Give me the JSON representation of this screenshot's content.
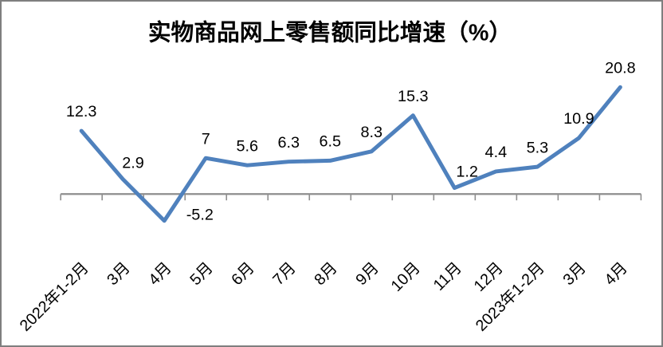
{
  "chart_data": {
    "type": "line",
    "title": "实物商品网上零售额同比增速（%）",
    "categories": [
      "2022年1-2月",
      "3月",
      "4月",
      "5月",
      "6月",
      "7月",
      "8月",
      "9月",
      "10月",
      "11月",
      "12月",
      "2023年1-2月",
      "3月",
      "4月"
    ],
    "values": [
      12.3,
      2.9,
      -5.2,
      7,
      5.6,
      6.3,
      6.5,
      8.3,
      15.3,
      1.2,
      4.4,
      5.3,
      10.9,
      20.8
    ],
    "data_labels": [
      "12.3",
      "2.9",
      "-5.2",
      "7",
      "5.6",
      "6.3",
      "6.5",
      "8.3",
      "15.3",
      "1.2",
      "4.4",
      "5.3",
      "10.9",
      "20.8"
    ],
    "xlabel": "",
    "ylabel": "",
    "x_tick_label_rotation_deg": 45,
    "y_axis_labels_visible": false,
    "gridlines": false,
    "legend_position": "none",
    "ylim_implied": [
      -10,
      25
    ],
    "colors": {
      "line": "#4f81bd",
      "axis": "#8e8e8e",
      "text": "#000000",
      "background": "#ffffff",
      "frame_border": "#7f7f7f"
    }
  }
}
